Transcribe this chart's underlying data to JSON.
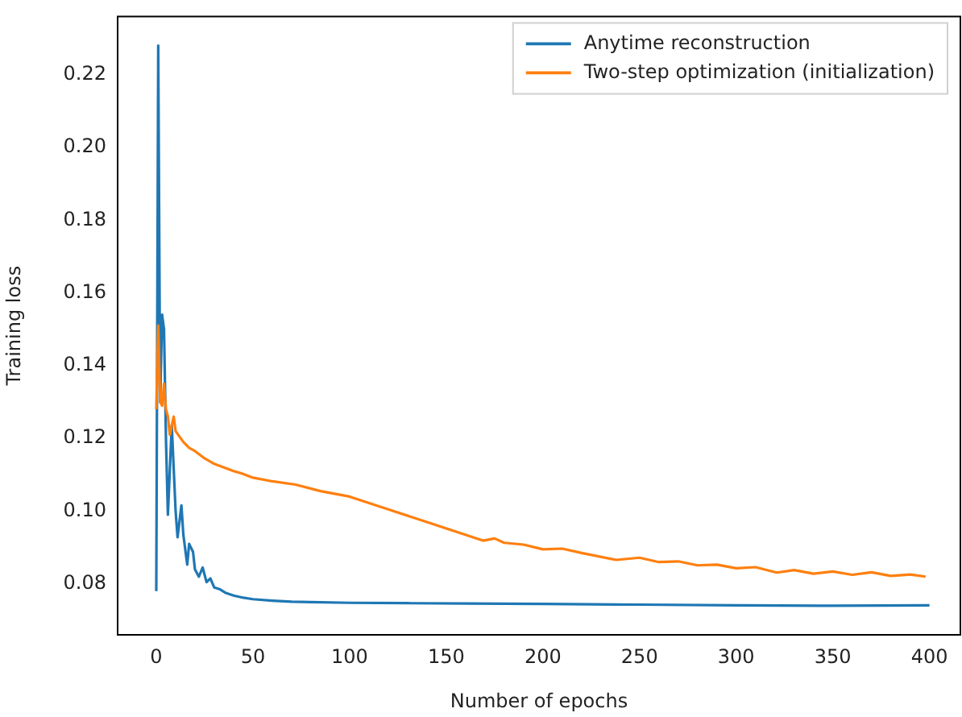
{
  "chart_data": {
    "type": "line",
    "xlabel": "Number of epochs",
    "ylabel": "Training loss",
    "xlim": [
      -20,
      416
    ],
    "ylim": [
      0.066,
      0.236
    ],
    "xticks": [
      0,
      50,
      100,
      150,
      200,
      250,
      300,
      350,
      400
    ],
    "yticks": [
      {
        "value": 0.08,
        "label": "0.08"
      },
      {
        "value": 0.1,
        "label": "0.10"
      },
      {
        "value": 0.12,
        "label": "0.12"
      },
      {
        "value": 0.14,
        "label": "0.14"
      },
      {
        "value": 0.16,
        "label": "0.16"
      },
      {
        "value": 0.18,
        "label": "0.18"
      },
      {
        "value": 0.2,
        "label": "0.20"
      },
      {
        "value": 0.22,
        "label": "0.22"
      }
    ],
    "grid": false,
    "legend": "top right",
    "marker": "none",
    "line_style": "solid",
    "series": [
      {
        "name": "Anytime reconstruction",
        "color": "#1f77b4",
        "x": [
          0,
          1,
          2,
          3,
          4,
          5,
          6,
          8,
          10,
          11,
          13,
          14,
          16,
          17,
          19,
          20,
          22,
          24,
          26,
          28,
          30,
          33,
          36,
          40,
          45,
          50,
          60,
          70,
          80,
          100,
          130,
          160,
          200,
          250,
          300,
          350,
          400
        ],
        "values": [
          0.078,
          0.228,
          0.13,
          0.154,
          0.15,
          0.12,
          0.099,
          0.1236,
          0.1,
          0.0928,
          0.1016,
          0.0935,
          0.0853,
          0.091,
          0.0888,
          0.084,
          0.082,
          0.0845,
          0.0805,
          0.0815,
          0.079,
          0.0785,
          0.0775,
          0.0768,
          0.0762,
          0.0758,
          0.0754,
          0.0751,
          0.075,
          0.0748,
          0.0747,
          0.0746,
          0.0745,
          0.0743,
          0.0741,
          0.074,
          0.0741
        ]
      },
      {
        "name": "Two-step optimization (initialization)",
        "color": "#ff7f0e",
        "x": [
          0,
          1,
          2,
          3,
          4,
          5,
          6,
          7,
          9,
          10,
          12,
          14,
          17,
          20,
          25,
          30,
          40,
          44,
          50,
          60,
          72,
          85,
          100,
          120,
          140,
          169,
          175,
          180,
          190,
          200,
          210,
          220,
          238,
          250,
          260,
          270,
          280,
          290,
          300,
          310,
          321,
          330,
          340,
          350,
          360,
          370,
          380,
          390,
          398
        ],
        "values": [
          0.128,
          0.151,
          0.13,
          0.129,
          0.135,
          0.128,
          0.126,
          0.121,
          0.126,
          0.122,
          0.1205,
          0.119,
          0.1174,
          0.1165,
          0.1145,
          0.113,
          0.111,
          0.1104,
          0.1092,
          0.1082,
          0.1073,
          0.1055,
          0.104,
          0.1005,
          0.097,
          0.0919,
          0.0925,
          0.0913,
          0.0908,
          0.0895,
          0.0897,
          0.0885,
          0.0866,
          0.0872,
          0.086,
          0.0862,
          0.0851,
          0.0853,
          0.0843,
          0.0846,
          0.0831,
          0.0838,
          0.0828,
          0.0834,
          0.0825,
          0.0832,
          0.0822,
          0.0826,
          0.082
        ]
      }
    ]
  }
}
